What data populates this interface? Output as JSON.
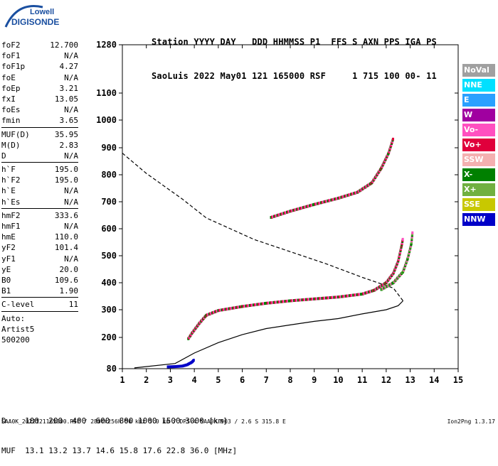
{
  "logo": {
    "line1": "Lowell",
    "line2": "DIGISONDE"
  },
  "header": {
    "line1": "Station YYYY DAY   DDD HHMMSS P1  FFS S AXN PPS IGA PS",
    "line2": "SaoLuis 2022 May01 121 165000 RSF     1 715 100 00- 11"
  },
  "params": {
    "group1": [
      {
        "k": "foF2",
        "v": "12.700"
      },
      {
        "k": "foF1",
        "v": "N/A"
      },
      {
        "k": "foF1p",
        "v": "4.27"
      },
      {
        "k": "foE",
        "v": "N/A"
      },
      {
        "k": "foEp",
        "v": "3.21"
      },
      {
        "k": "fxI",
        "v": "13.05"
      },
      {
        "k": "foEs",
        "v": "N/A"
      },
      {
        "k": "fmin",
        "v": "3.65"
      }
    ],
    "group2": [
      {
        "k": "MUF(D)",
        "v": "35.95"
      },
      {
        "k": "M(D)",
        "v": "2.83"
      },
      {
        "k": "D",
        "v": "N/A"
      }
    ],
    "group3": [
      {
        "k": "h`F",
        "v": "195.0"
      },
      {
        "k": "h`F2",
        "v": "195.0"
      },
      {
        "k": "h`E",
        "v": "N/A"
      },
      {
        "k": "h`Es",
        "v": "N/A"
      }
    ],
    "group4": [
      {
        "k": "hmF2",
        "v": "333.6"
      },
      {
        "k": "hmF1",
        "v": "N/A"
      },
      {
        "k": "hmE",
        "v": "110.0"
      },
      {
        "k": "yF2",
        "v": "101.4"
      },
      {
        "k": "yF1",
        "v": "N/A"
      },
      {
        "k": "yE",
        "v": "20.0"
      },
      {
        "k": "B0",
        "v": "109.6"
      },
      {
        "k": "B1",
        "v": "1.90"
      }
    ],
    "clevel": {
      "k": "C-level",
      "v": "11"
    },
    "auto": [
      "Auto:",
      "Artist5",
      "500200"
    ]
  },
  "legend": [
    {
      "label": "NoVal",
      "color": "#a0a0a0"
    },
    {
      "label": "NNE",
      "color": "#00e0ff"
    },
    {
      "label": "E",
      "color": "#2aa0ff"
    },
    {
      "label": "W",
      "color": "#a000a0"
    },
    {
      "label": "Vo-",
      "color": "#ff50c0"
    },
    {
      "label": "Vo+",
      "color": "#e0003c"
    },
    {
      "label": "SSW",
      "color": "#f4b0b0"
    },
    {
      "label": "X-",
      "color": "#008000"
    },
    {
      "label": "X+",
      "color": "#70b040"
    },
    {
      "label": "SSE",
      "color": "#c8c800"
    },
    {
      "label": "NNW",
      "color": "#0000c8"
    }
  ],
  "footer": {
    "line1": "D    100  200  400  600  800 1000 1500 3000 [km]",
    "line2": "MUF  13.1 13.2 13.7 14.6 15.8 17.6 22.8 36.0 [MHz]",
    "source": "SAA0K_2022121165000.RSF / 280fx256h 50 kHz 5.0 km / DPS-4 SAA0K 903 / 2.6 S 315.8 E",
    "version": "Ion2Png 1.3.17"
  },
  "chart_data": {
    "type": "scatter",
    "xlim": [
      1,
      15
    ],
    "ylim": [
      80,
      1280
    ],
    "x_ticks": [
      "1",
      "2",
      "3",
      "4",
      "5",
      "6",
      "7",
      "8",
      "9",
      "10",
      "11",
      "12",
      "13",
      "14",
      "15"
    ],
    "y_ticks": [
      "80",
      "200",
      "300",
      "400",
      "500",
      "600",
      "700",
      "800",
      "900",
      "1000",
      "1100",
      "1280"
    ],
    "y_scale": "nonlinear",
    "y_tick_values": [
      80,
      200,
      300,
      400,
      500,
      600,
      700,
      800,
      900,
      1000,
      1100,
      1280
    ],
    "y_tick_fractions": [
      0.0,
      0.0977,
      0.2039,
      0.3183,
      0.4328,
      0.5472,
      0.6616,
      0.7761,
      0.8905,
      1.0049,
      1.1193,
      1.3254
    ],
    "traces": [
      {
        "name": "F2 O-trace",
        "color": "#e0003c",
        "points": [
          [
            3.75,
            195
          ],
          [
            3.9,
            215
          ],
          [
            4.2,
            250
          ],
          [
            4.5,
            280
          ],
          [
            5.0,
            297
          ],
          [
            6.0,
            312
          ],
          [
            7.0,
            324
          ],
          [
            8.0,
            333
          ],
          [
            9.0,
            340
          ],
          [
            10.0,
            347
          ],
          [
            11.0,
            358
          ],
          [
            11.5,
            372
          ],
          [
            12.0,
            400
          ],
          [
            12.3,
            435
          ],
          [
            12.5,
            480
          ],
          [
            12.65,
            540
          ],
          [
            12.7,
            565
          ]
        ]
      },
      {
        "name": "F2 X-trace",
        "color": "#70b040",
        "points": [
          [
            11.8,
            375
          ],
          [
            12.3,
            400
          ],
          [
            12.7,
            440
          ],
          [
            12.9,
            490
          ],
          [
            13.05,
            545
          ],
          [
            13.1,
            590
          ]
        ]
      },
      {
        "name": "multihop trace",
        "color": "#e0003c",
        "points": [
          [
            7.2,
            642
          ],
          [
            8.0,
            665
          ],
          [
            9.0,
            690
          ],
          [
            10.0,
            713
          ],
          [
            10.8,
            735
          ],
          [
            11.4,
            770
          ],
          [
            11.8,
            825
          ],
          [
            12.1,
            880
          ],
          [
            12.3,
            935
          ]
        ]
      },
      {
        "name": "E trace",
        "color": "#0000c8",
        "points": [
          [
            2.9,
            87
          ],
          [
            3.2,
            88
          ],
          [
            3.5,
            90
          ],
          [
            3.7,
            95
          ],
          [
            3.9,
            105
          ],
          [
            4.0,
            115
          ]
        ]
      }
    ],
    "profile_solid": [
      [
        1.5,
        83
      ],
      [
        3.2,
        100
      ],
      [
        4.0,
        140
      ],
      [
        5.0,
        180
      ],
      [
        6.0,
        210
      ],
      [
        7.0,
        232
      ],
      [
        8.0,
        245
      ],
      [
        9.0,
        258
      ],
      [
        10.0,
        268
      ],
      [
        11.0,
        285
      ],
      [
        12.0,
        300
      ],
      [
        12.5,
        315
      ],
      [
        12.7,
        333
      ]
    ],
    "profile_dashed": [
      [
        12.7,
        333
      ],
      [
        12.3,
        380
      ],
      [
        11.0,
        420
      ],
      [
        9.5,
        470
      ],
      [
        8.0,
        515
      ],
      [
        6.5,
        560
      ],
      [
        5.5,
        600
      ],
      [
        4.5,
        640
      ],
      [
        3.5,
        710
      ],
      [
        2.0,
        805
      ],
      [
        1.0,
        880
      ]
    ]
  }
}
